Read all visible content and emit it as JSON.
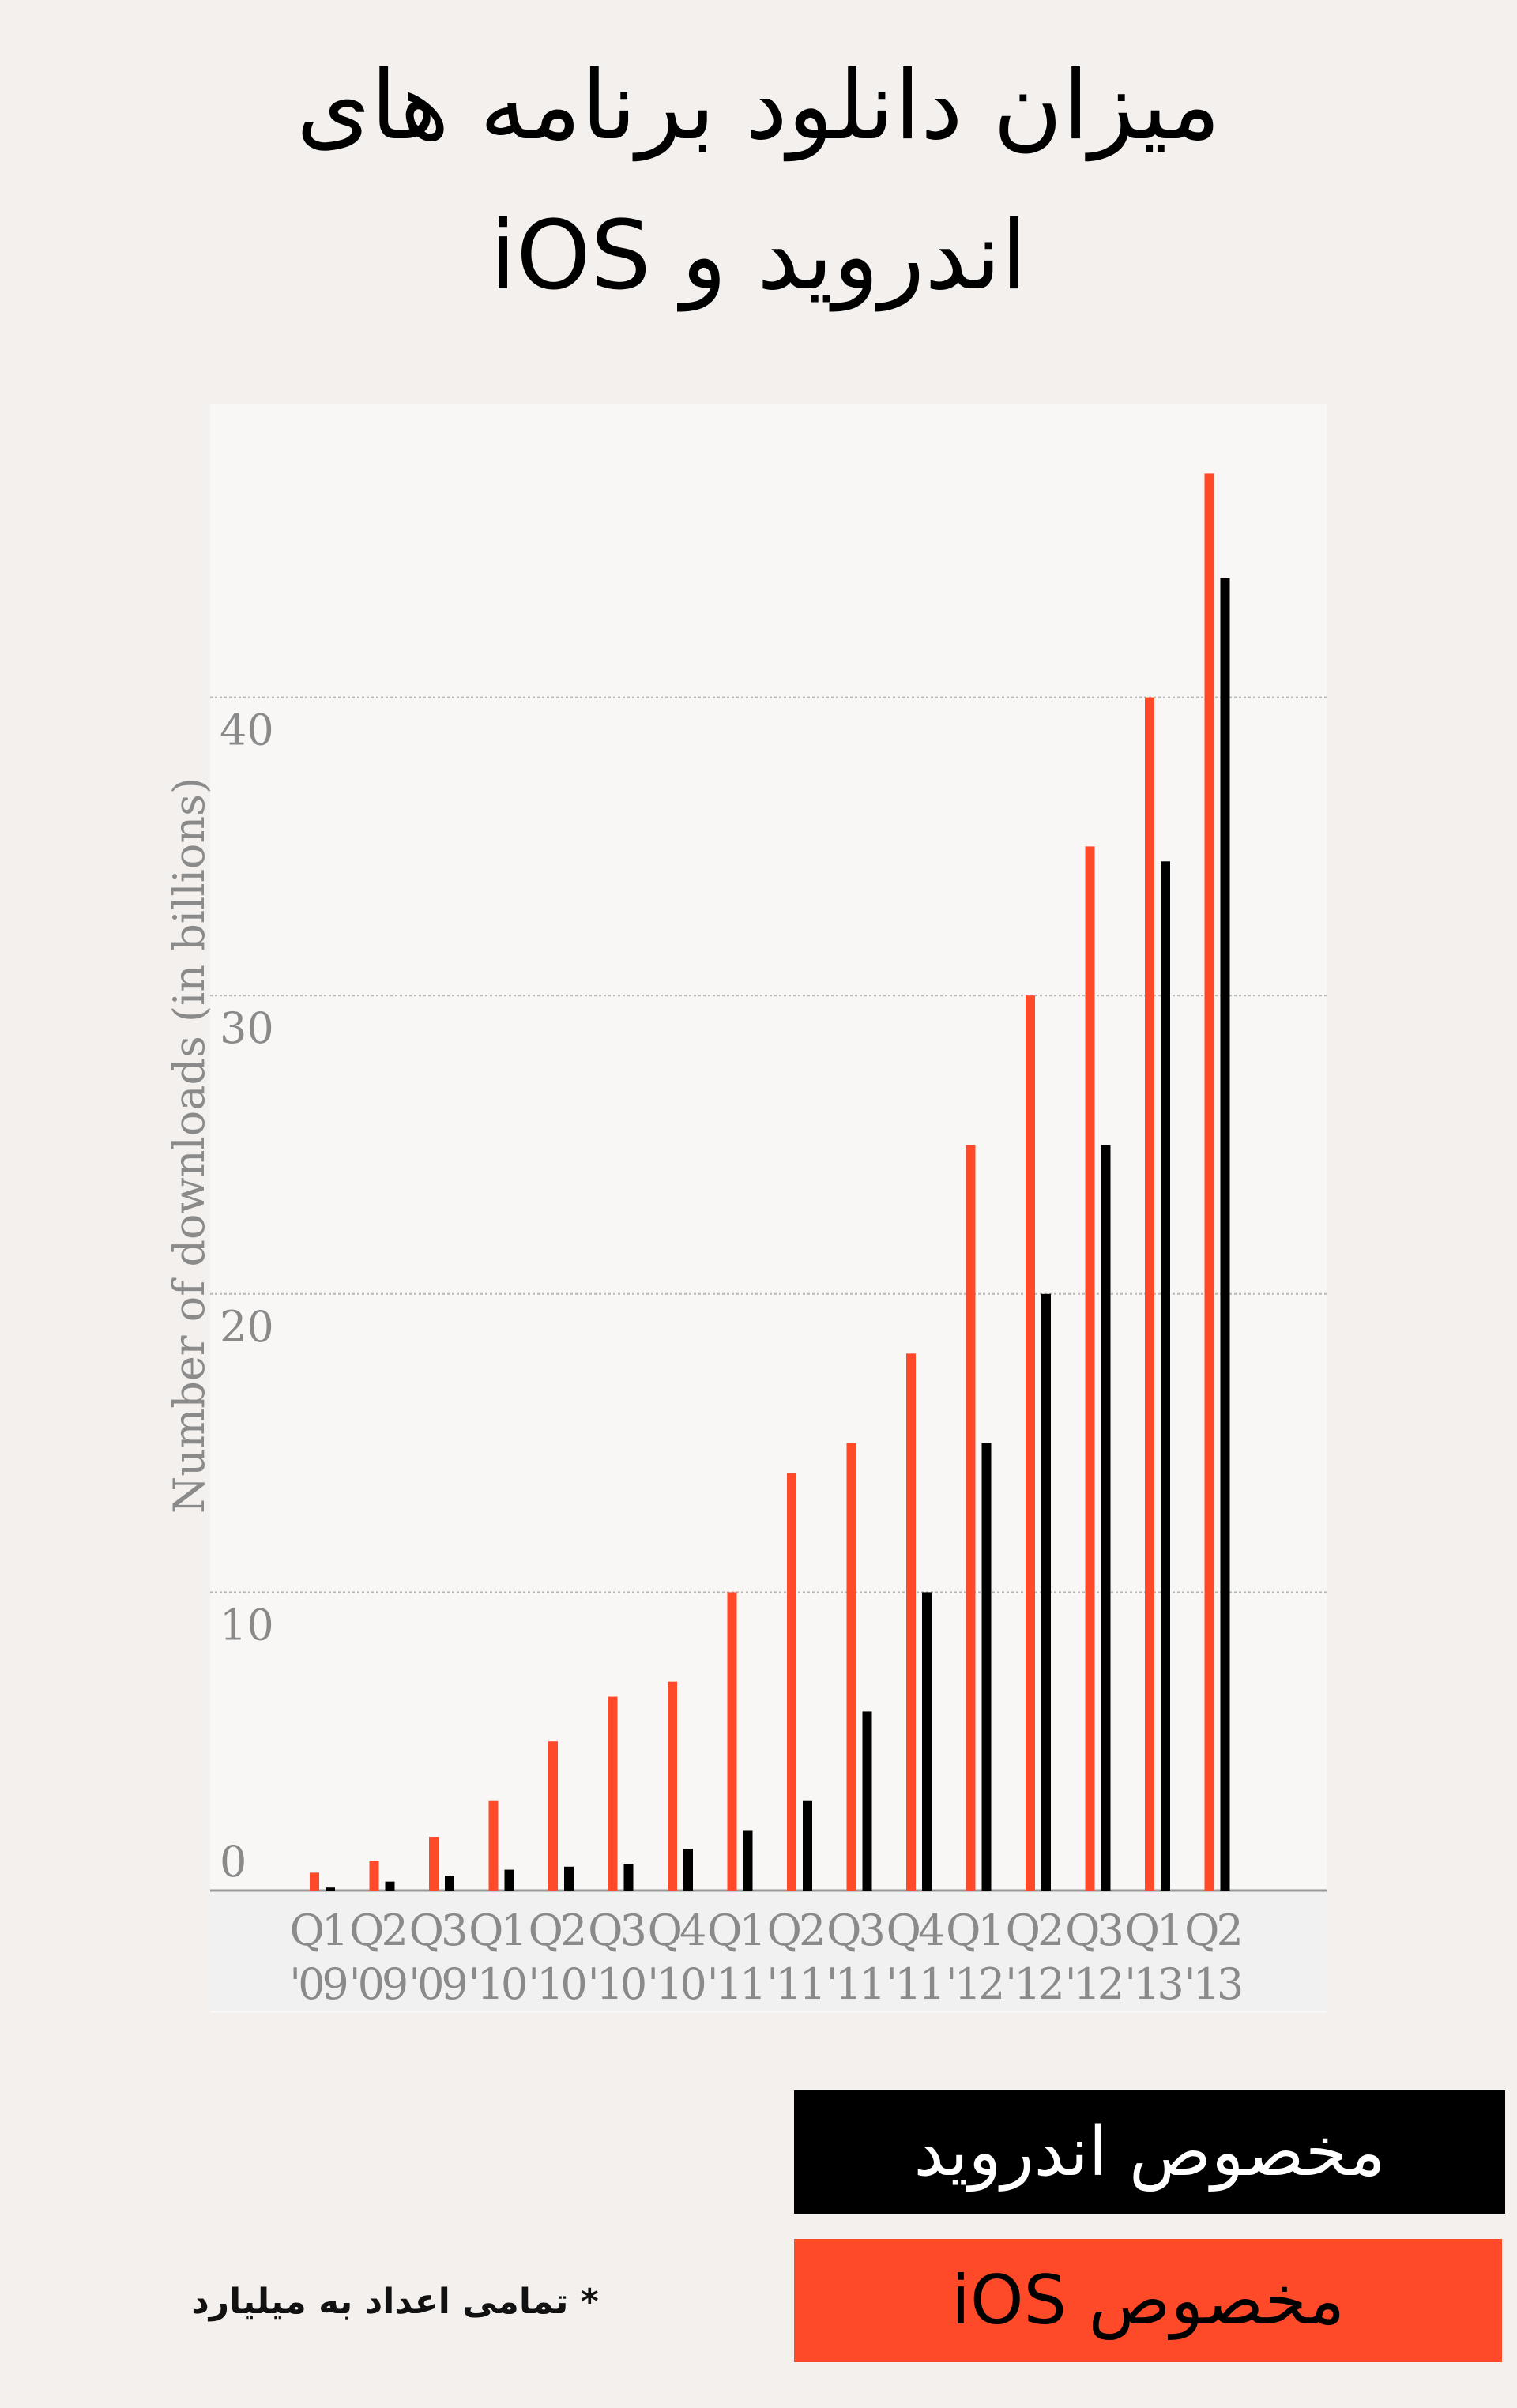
{
  "title": {
    "line1": "میزان دانلود برنامه های",
    "line2": "اندروید و iOS"
  },
  "legend": {
    "android_label": "مخصوص اندروید",
    "ios_label": "مخصوص iOS"
  },
  "footnote": "* تمامی اعداد به میلیارد",
  "colors": {
    "ios": "#ff4a2a",
    "android": "#000000",
    "grid": "#b8b8b8",
    "axis_text": "#8a8a8a"
  },
  "chart_data": {
    "type": "bar",
    "title": "میزان دانلود برنامه های اندروید و iOS",
    "xlabel": "",
    "ylabel": "Number of downloads (in billions)",
    "ylim": [
      0,
      50
    ],
    "yticks": [
      0,
      10,
      20,
      30,
      40
    ],
    "grid": true,
    "categories": [
      [
        "Q1",
        "'09"
      ],
      [
        "Q2",
        "'09"
      ],
      [
        "Q3",
        "'09"
      ],
      [
        "Q1",
        "'10"
      ],
      [
        "Q2",
        "'10"
      ],
      [
        "Q3",
        "'10"
      ],
      [
        "Q4",
        "'10"
      ],
      [
        "Q1",
        "'11"
      ],
      [
        "Q2",
        "'11"
      ],
      [
        "Q3",
        "'11"
      ],
      [
        "Q4",
        "'11"
      ],
      [
        "Q1",
        "'12"
      ],
      [
        "Q2",
        "'12"
      ],
      [
        "Q3",
        "'12"
      ],
      [
        "Q1",
        "'13"
      ],
      [
        "Q2",
        "'13"
      ]
    ],
    "series": [
      {
        "name": "مخصوص iOS",
        "color": "#ff4a2a",
        "values": [
          0.6,
          1.0,
          1.8,
          3.0,
          5.0,
          6.5,
          7.0,
          10.0,
          14.0,
          15.0,
          18.0,
          25.0,
          30.0,
          35.0,
          40.0,
          47.5
        ]
      },
      {
        "name": "مخصوص اندروید",
        "color": "#000000",
        "values": [
          0.1,
          0.3,
          0.5,
          0.7,
          0.8,
          0.9,
          1.4,
          2.0,
          3.0,
          6.0,
          10.0,
          15.0,
          20.0,
          25.0,
          34.5,
          44.0
        ]
      }
    ]
  }
}
